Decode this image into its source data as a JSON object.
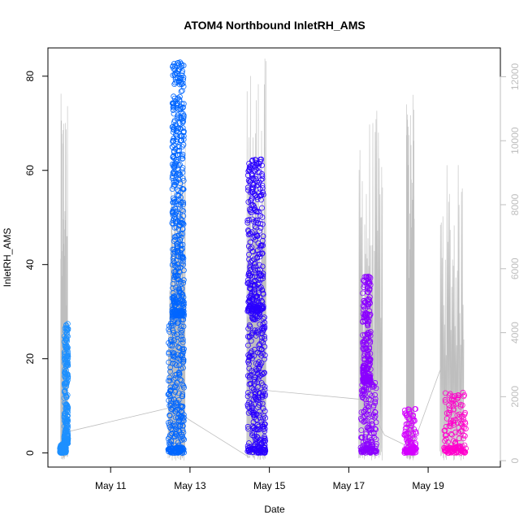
{
  "chart_data": {
    "type": "scatter",
    "title": "ATOM4 Northbound InletRH_AMS",
    "xlabel": "Date",
    "ylabel": "InletRH_AMS",
    "x_ticks": [
      "May 11",
      "May 13",
      "May 15",
      "May 17",
      "May 19"
    ],
    "x_tick_days": [
      11,
      13,
      15,
      17,
      19
    ],
    "xlim": [
      9.42,
      20.82
    ],
    "ylim": [
      -3,
      86
    ],
    "y_ticks": [
      0,
      20,
      40,
      60,
      80
    ],
    "y2_label": "",
    "y2_ticks": [
      0,
      2000,
      4000,
      6000,
      8000,
      10000,
      12000
    ],
    "y2lim": [
      -200,
      12900
    ],
    "grid": false,
    "legend": "none",
    "point_style": "open-circle",
    "line_color": "#bebebe",
    "series": [
      {
        "color": "#1E90FF",
        "segments": [
          {
            "start": 9.72,
            "end": 9.88,
            "low": 0,
            "high": 2
          },
          {
            "start": 9.83,
            "end": 9.93,
            "low": 2,
            "high": 27.5
          }
        ]
      },
      {
        "color": "#0066FF",
        "segments": [
          {
            "start": 12.45,
            "end": 12.85,
            "low": 0,
            "high": 29
          },
          {
            "start": 12.55,
            "end": 12.85,
            "low": 29,
            "high": 83
          }
        ]
      },
      {
        "color": "#2A00FF",
        "segments": [
          {
            "start": 14.45,
            "end": 14.9,
            "low": 0,
            "high": 30
          },
          {
            "start": 14.45,
            "end": 14.85,
            "low": 30,
            "high": 62.5
          }
        ]
      },
      {
        "color": "#8B00FF",
        "segments": [
          {
            "start": 17.3,
            "end": 17.7,
            "low": 0,
            "high": 15
          },
          {
            "start": 17.35,
            "end": 17.55,
            "low": 15,
            "high": 37.5
          }
        ]
      },
      {
        "color": "#D400FF",
        "segments": [
          {
            "start": 18.4,
            "end": 18.7,
            "low": 0,
            "high": 9.5
          }
        ]
      },
      {
        "color": "#FF00CC",
        "segments": [
          {
            "start": 19.4,
            "end": 19.95,
            "low": 0,
            "high": 13
          }
        ]
      }
    ],
    "secondary_line": {
      "color": "#bebebe",
      "baseline": [
        [
          9.9,
          900
        ],
        [
          12.65,
          1700
        ],
        [
          12.95,
          1300
        ],
        [
          14.5,
          100
        ],
        [
          14.9,
          2200
        ],
        [
          17.45,
          1900
        ],
        [
          17.9,
          800
        ],
        [
          18.4,
          500
        ],
        [
          18.65,
          600
        ],
        [
          19.35,
          3000
        ]
      ],
      "bursts": [
        {
          "start": 9.74,
          "end": 9.92,
          "peak": 11500
        },
        {
          "start": 12.45,
          "end": 12.88,
          "peak": 10000
        },
        {
          "start": 14.43,
          "end": 14.92,
          "peak": 12700
        },
        {
          "start": 17.25,
          "end": 17.85,
          "peak": 11000
        },
        {
          "start": 18.45,
          "end": 18.65,
          "peak": 11500
        },
        {
          "start": 19.3,
          "end": 19.9,
          "peak": 9350
        }
      ]
    }
  }
}
